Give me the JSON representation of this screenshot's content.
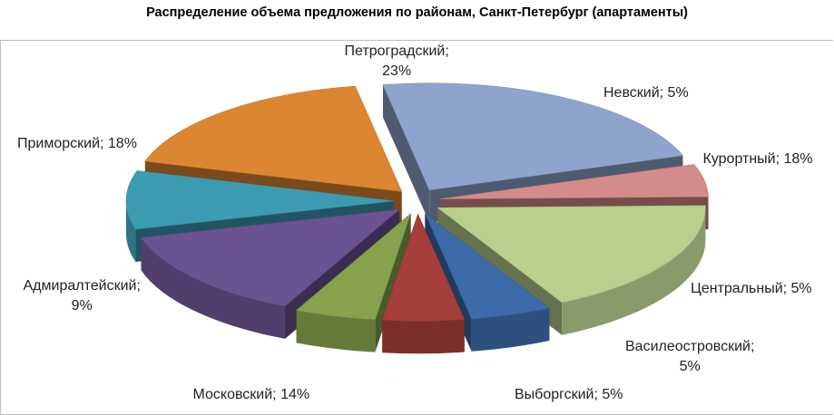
{
  "title": "Распределение объема предложения по районам, Санкт-Петербург (апартаменты)",
  "chart_data": {
    "type": "pie",
    "title": "Распределение объема предложения по районам, Санкт-Петербург (апартаменты)",
    "style": "3d-exploded",
    "unit": "%",
    "slices": [
      {
        "name": "Петроградский",
        "value": 23,
        "color": "#8ea4cc",
        "label_line1": "Петроградский;",
        "label_line2": "23%"
      },
      {
        "name": "Невский",
        "value": 5,
        "color": "#d48c8a",
        "label_line1": "Невский; 5%",
        "label_line2": ""
      },
      {
        "name": "Курортный",
        "value": 18,
        "color": "#b8cf8e",
        "label_line1": "Курортный; 18%",
        "label_line2": ""
      },
      {
        "name": "Центральный",
        "value": 5,
        "color": "#3d6aa9",
        "label_line1": "Центральный; 5%",
        "label_line2": ""
      },
      {
        "name": "Василеостровский",
        "value": 5,
        "color": "#a53d3a",
        "label_line1": "Василеостровский;",
        "label_line2": "5%"
      },
      {
        "name": "Выборгский",
        "value": 5,
        "color": "#86a24c",
        "label_line1": "Выборгский; 5%",
        "label_line2": ""
      },
      {
        "name": "Московский",
        "value": 14,
        "color": "#6b5290",
        "label_line1": "Московский; 14%",
        "label_line2": ""
      },
      {
        "name": "Адмиралтейский",
        "value": 9,
        "color": "#3d9bb1",
        "label_line1": "Адмиралтейский;",
        "label_line2": "9%"
      },
      {
        "name": "Приморский",
        "value": 18,
        "color": "#dd8632",
        "label_line1": "Приморский; 18%",
        "label_line2": ""
      }
    ]
  }
}
